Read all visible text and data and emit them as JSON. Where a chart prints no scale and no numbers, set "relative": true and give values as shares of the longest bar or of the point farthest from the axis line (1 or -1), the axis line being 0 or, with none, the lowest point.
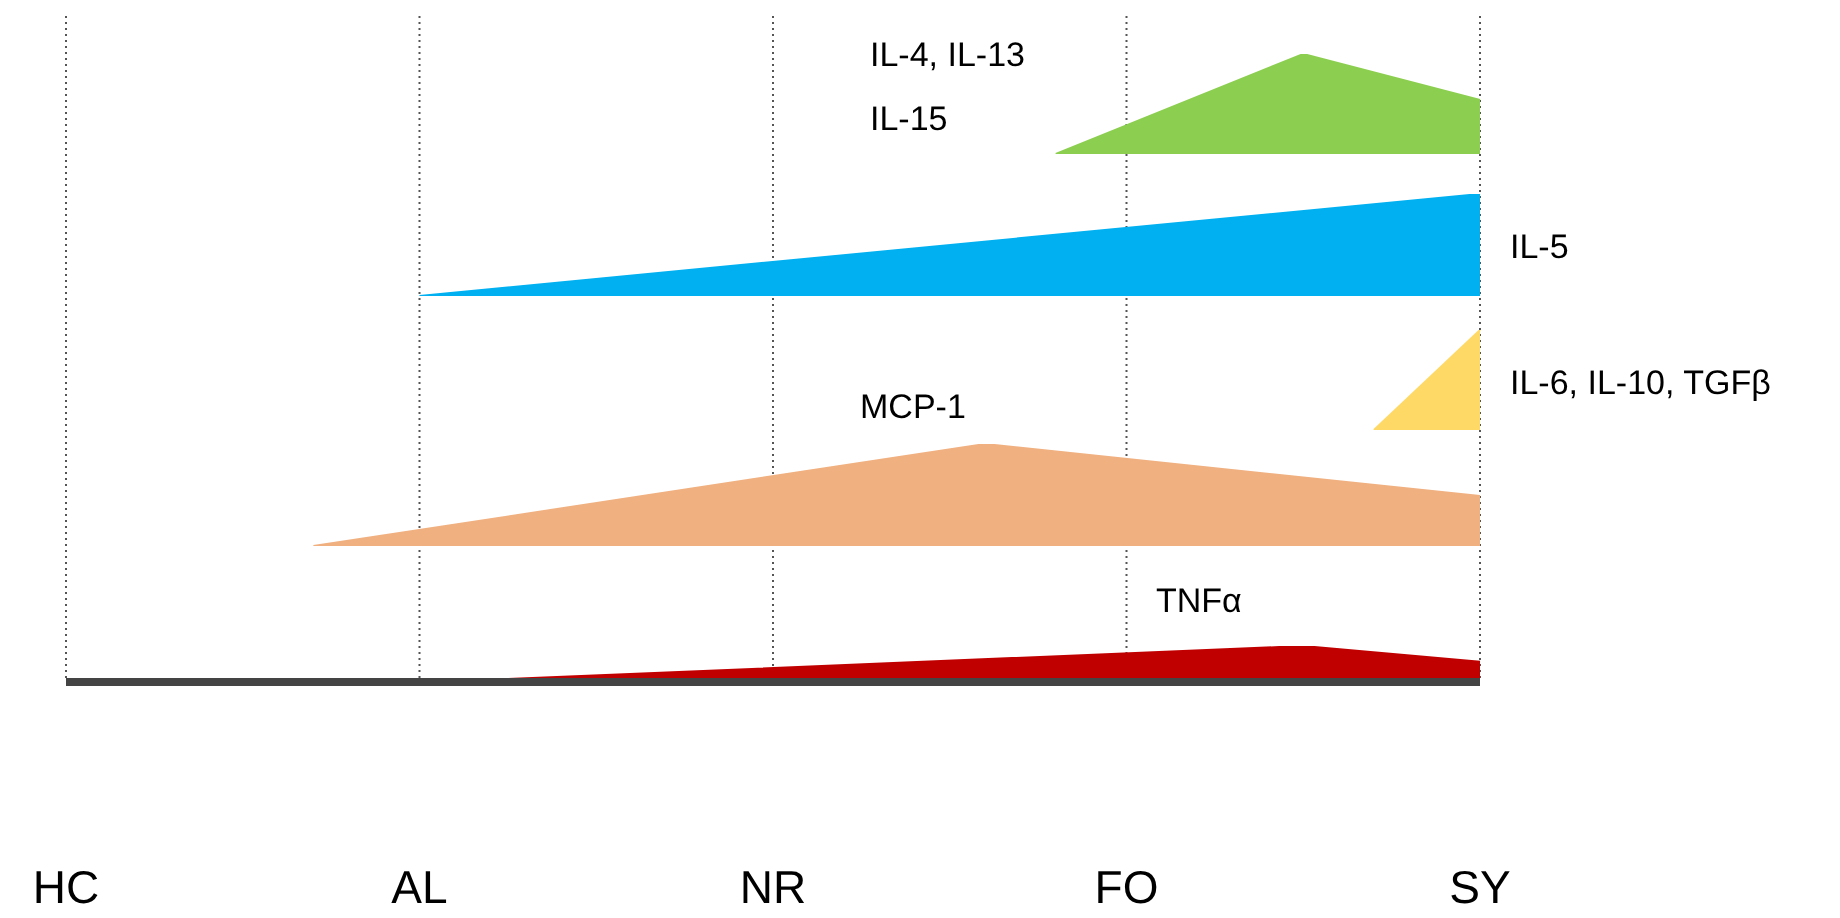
{
  "chart_data": [
    {
      "type": "area",
      "relative": true,
      "categories": [
        null,
        null,
        null,
        null,
        null,
        null,
        null,
        null,
        null,
        null,
        null,
        null,
        null,
        null,
        null,
        null,
        null,
        null,
        null,
        null,
        null,
        null,
        null,
        null,
        null,
        null,
        null,
        null,
        null,
        null,
        null,
        null,
        null,
        null,
        null,
        null,
        null,
        null,
        null,
        null,
        null
      ],
      "series": [
        {
          "name": "IL-4, IL-13\nIL-15",
          "color": "#8ccf50",
          "values": [
            null,
            null,
            null,
            null,
            null,
            null,
            null,
            null,
            null,
            null,
            null,
            null,
            null,
            null,
            null,
            null,
            null,
            null,
            null,
            null,
            null,
            null,
            null,
            null,
            null,
            null,
            null,
            null,
            0,
            null,
            null,
            null,
            null,
            null,
            null,
            1,
            null,
            null,
            null,
            null,
            0.54
          ]
        }
      ],
      "tick_labels": false
    },
    {
      "type": "area",
      "relative": true,
      "categories": [
        null,
        null,
        null,
        null,
        null,
        null,
        null,
        null,
        null,
        null,
        null,
        null,
        null,
        null,
        null,
        null,
        null,
        null,
        null,
        null,
        null,
        null,
        null,
        null,
        null,
        null,
        null,
        null,
        null,
        null,
        null,
        null,
        null,
        null,
        null,
        null,
        null,
        null,
        null,
        null,
        null
      ],
      "series": [
        {
          "name": "IL-5",
          "color": "#00b0f0",
          "values": [
            null,
            null,
            null,
            null,
            null,
            null,
            null,
            null,
            null,
            null,
            0,
            null,
            null,
            null,
            null,
            null,
            null,
            null,
            null,
            null,
            null,
            null,
            null,
            null,
            null,
            null,
            null,
            null,
            null,
            null,
            null,
            null,
            null,
            null,
            null,
            null,
            null,
            null,
            null,
            null,
            1
          ]
        }
      ],
      "tick_labels": false
    },
    {
      "type": "area",
      "relative": true,
      "categories": [
        null,
        null,
        null,
        null,
        null,
        null,
        null,
        null,
        null,
        null,
        null,
        null,
        null,
        null,
        null,
        null,
        null,
        null,
        null,
        null,
        null,
        null,
        null,
        null,
        null,
        null,
        null,
        null,
        null,
        null,
        null,
        null,
        null,
        null,
        null,
        null,
        null,
        null,
        null,
        null,
        null
      ],
      "series": [
        {
          "name": "IL-6, IL-10, TGFβ",
          "color": "#ffd966",
          "values": [
            null,
            null,
            null,
            null,
            null,
            null,
            null,
            null,
            null,
            null,
            null,
            null,
            null,
            null,
            null,
            null,
            null,
            null,
            null,
            null,
            null,
            null,
            null,
            null,
            null,
            null,
            null,
            null,
            null,
            null,
            null,
            null,
            null,
            null,
            null,
            null,
            null,
            0,
            null,
            null,
            1
          ]
        }
      ],
      "tick_labels": false
    },
    {
      "type": "area",
      "relative": true,
      "categories": [
        null,
        null,
        null,
        null,
        null,
        null,
        null,
        null,
        null,
        null,
        null,
        null,
        null,
        null,
        null,
        null,
        null,
        null,
        null,
        null,
        null,
        null,
        null,
        null,
        null,
        null,
        null,
        null,
        null,
        null,
        null,
        null,
        null,
        null,
        null,
        null,
        null,
        null,
        null,
        null,
        null
      ],
      "series": [
        {
          "name": "MCP-1",
          "color": "#f0b080",
          "values": [
            null,
            null,
            null,
            null,
            null,
            null,
            null,
            0,
            null,
            null,
            null,
            null,
            null,
            null,
            null,
            null,
            null,
            null,
            null,
            null,
            null,
            null,
            null,
            null,
            null,
            null,
            1,
            null,
            null,
            null,
            null,
            null,
            null,
            null,
            null,
            null,
            null,
            null,
            null,
            null,
            0.49
          ]
        }
      ],
      "tick_labels": false
    },
    {
      "type": "area",
      "relative": true,
      "categories": [
        "HC",
        null,
        null,
        null,
        null,
        null,
        null,
        null,
        null,
        null,
        "AL",
        null,
        null,
        null,
        null,
        null,
        null,
        null,
        null,
        null,
        "NR",
        null,
        null,
        null,
        null,
        null,
        null,
        null,
        null,
        null,
        "FO",
        null,
        null,
        null,
        null,
        null,
        null,
        null,
        null,
        null,
        "SY"
      ],
      "series": [
        {
          "name": "TNFα",
          "color": "#c00000",
          "values": [
            null,
            null,
            null,
            null,
            null,
            null,
            null,
            null,
            null,
            null,
            null,
            null,
            0.06,
            null,
            null,
            null,
            null,
            null,
            null,
            null,
            null,
            null,
            null,
            null,
            null,
            null,
            null,
            null,
            null,
            null,
            null,
            null,
            null,
            null,
            null,
            1,
            null,
            null,
            null,
            null,
            0.56
          ]
        }
      ],
      "grid": "x",
      "tick_labels": "x"
    }
  ]
}
